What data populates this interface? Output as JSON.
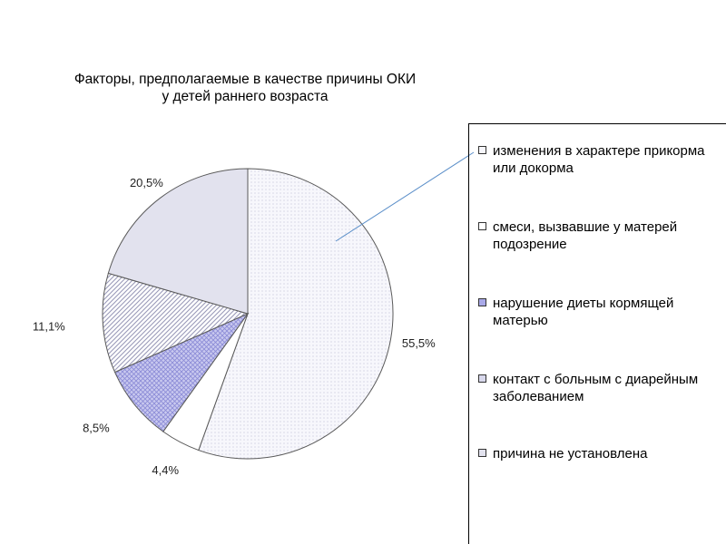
{
  "chart_data": {
    "type": "pie",
    "title_lines": [
      "Факторы, предполагаемые в качестве причины ОКИ",
      "у детей раннего возраста"
    ],
    "categories": [
      "изменения в характере прикорма или докорма",
      "смеси, вызвавшие у матерей подозрение",
      "нарушение диеты кормящей матерью",
      "контакт с больным с диарейным заболеванием",
      "причина не установлена"
    ],
    "values": [
      55.5,
      4.4,
      8.5,
      11.1,
      20.5
    ],
    "data_labels": [
      "55,5%",
      "4,4%",
      "8,5%",
      "11,1%",
      "20,5%"
    ],
    "colors": [
      "#f6f6fb",
      "#ffffff",
      "#c9c9ef",
      "#ffffff",
      "#e2e2ee"
    ],
    "patterns": [
      "dots",
      "none",
      "grid",
      "diag",
      "solid"
    ],
    "legend_position": "right",
    "start_angle_deg": 0,
    "direction": "clockwise"
  },
  "legend": {
    "items": [
      {
        "label": "изменения в характере прикорма или докорма"
      },
      {
        "label": "смеси, вызвавшие у матерей подозрение"
      },
      {
        "label": "нарушение диеты кормящей матерью"
      },
      {
        "label": "контакт с больным с диарейным заболеванием"
      },
      {
        "label": "причина не установлена"
      }
    ]
  }
}
